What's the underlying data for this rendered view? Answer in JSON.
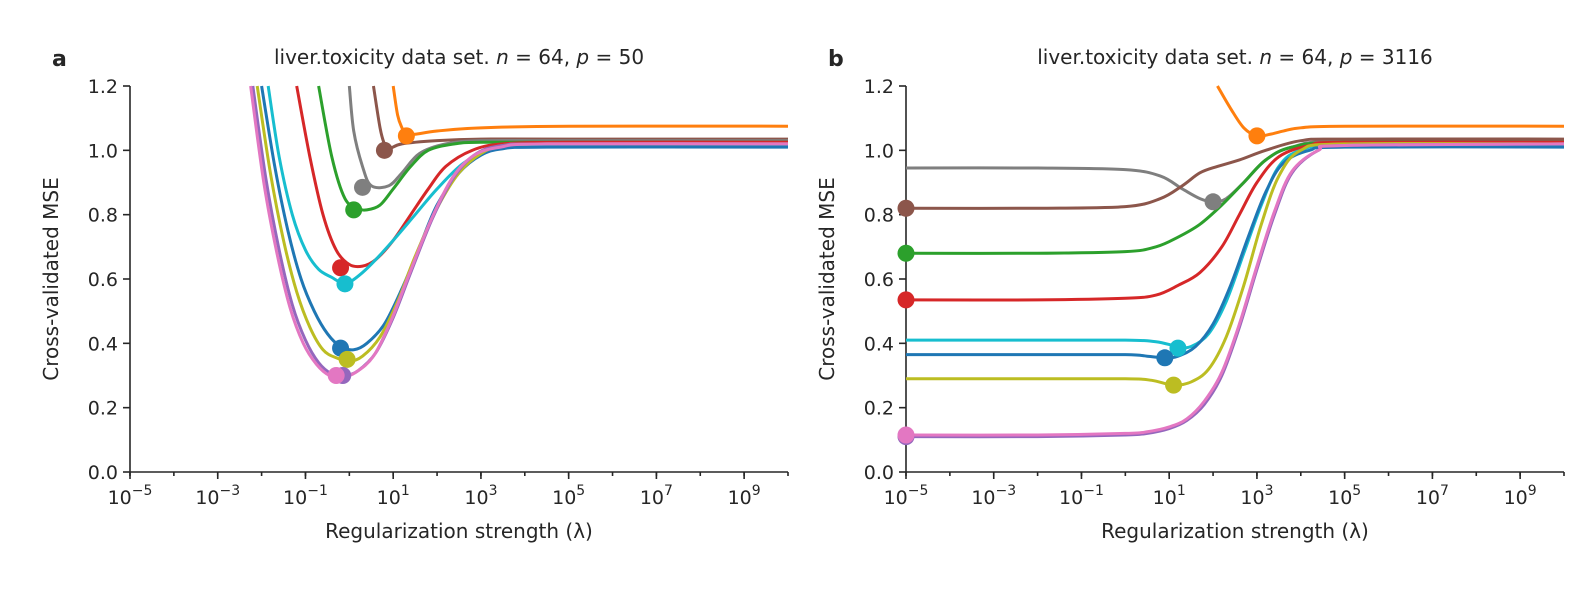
{
  "chart_data": [
    {
      "type": "line",
      "panel": "a",
      "title_parts": [
        "liver.toxicity data set. ",
        "n",
        " = 64, ",
        "p",
        " = 50"
      ],
      "xlabel": "Regularization strength (λ)",
      "ylabel": "Cross-validated MSE",
      "xscale": "log",
      "xlim": [
        -5,
        10
      ],
      "ylim": [
        0,
        1.2
      ],
      "yticks": [
        "0.0",
        "0.2",
        "0.4",
        "0.6",
        "0.8",
        "1.0",
        "1.2"
      ],
      "xticks_exp": [
        "−5",
        "−3",
        "−1",
        "1",
        "3",
        "5",
        "7",
        "9"
      ],
      "grid": false,
      "series": [
        {
          "color": "#ff7f0e",
          "x": [
            1.0,
            1.1,
            1.2,
            1.3,
            1.5,
            2,
            3,
            5,
            10
          ],
          "y": [
            1.2,
            1.11,
            1.07,
            1.05,
            1.05,
            1.06,
            1.07,
            1.075,
            1.075
          ],
          "min": [
            1.3,
            1.045
          ]
        },
        {
          "color": "#8c564b",
          "x": [
            0.55,
            0.7,
            0.8,
            0.9,
            1.2,
            2,
            3,
            5,
            10
          ],
          "y": [
            1.2,
            1.07,
            1.02,
            1.005,
            1.02,
            1.03,
            1.035,
            1.035,
            1.035
          ],
          "min": [
            0.8,
            1.0
          ]
        },
        {
          "color": "#7f7f7f",
          "x": [
            0,
            0.1,
            0.3,
            0.5,
            0.9,
            1.2,
            1.6,
            2.2,
            3,
            5,
            10
          ],
          "y": [
            1.2,
            1.06,
            0.95,
            0.89,
            0.89,
            0.93,
            0.99,
            1.02,
            1.03,
            1.03,
            1.03
          ],
          "min": [
            0.3,
            0.885
          ]
        },
        {
          "color": "#2ca02c",
          "x": [
            -0.7,
            -0.4,
            -0.1,
            0.2,
            0.4,
            0.7,
            1.0,
            1.4,
            1.8,
            2.4,
            3,
            5,
            10
          ],
          "y": [
            1.2,
            0.98,
            0.85,
            0.82,
            0.815,
            0.83,
            0.88,
            0.95,
            1.0,
            1.02,
            1.025,
            1.025,
            1.025
          ],
          "min": [
            0.1,
            0.815
          ]
        },
        {
          "color": "#d62728",
          "x": [
            -1.2,
            -0.9,
            -0.6,
            -0.3,
            0,
            0.3,
            0.6,
            1.0,
            1.4,
            1.8,
            2.2,
            2.8,
            3.5,
            5,
            10
          ],
          "y": [
            1.2,
            0.98,
            0.8,
            0.69,
            0.645,
            0.64,
            0.66,
            0.72,
            0.8,
            0.88,
            0.95,
            1.0,
            1.02,
            1.025,
            1.025
          ],
          "min": [
            -0.2,
            0.635
          ]
        },
        {
          "color": "#17becf",
          "x": [
            -1.85,
            -1.6,
            -1.3,
            -1.0,
            -0.7,
            -0.4,
            -0.2,
            0,
            0.3,
            0.6,
            1.0,
            1.5,
            2.0,
            2.6,
            3.2,
            4,
            5,
            10
          ],
          "y": [
            1.2,
            0.98,
            0.8,
            0.69,
            0.63,
            0.605,
            0.59,
            0.59,
            0.62,
            0.66,
            0.72,
            0.8,
            0.88,
            0.96,
            1.0,
            1.015,
            1.015,
            1.015
          ],
          "min": [
            -0.1,
            0.585
          ]
        },
        {
          "color": "#1f77b4",
          "x": [
            -2.0,
            -1.7,
            -1.4,
            -1.1,
            -0.8,
            -0.5,
            -0.2,
            0.1,
            0.4,
            0.8,
            1.2,
            1.6,
            2.0,
            2.5,
            3.0,
            3.5,
            4.5,
            10
          ],
          "y": [
            1.2,
            0.95,
            0.75,
            0.6,
            0.5,
            0.43,
            0.39,
            0.38,
            0.4,
            0.46,
            0.57,
            0.7,
            0.83,
            0.93,
            0.985,
            1.005,
            1.01,
            1.01
          ],
          "min": [
            -0.2,
            0.385
          ]
        },
        {
          "color": "#bcbd22",
          "x": [
            -2.1,
            -1.8,
            -1.5,
            -1.2,
            -0.9,
            -0.6,
            -0.3,
            0,
            0.3,
            0.7,
            1.1,
            1.5,
            2.0,
            2.5,
            3.0,
            3.5,
            4.5,
            10
          ],
          "y": [
            1.2,
            0.93,
            0.72,
            0.56,
            0.45,
            0.38,
            0.355,
            0.345,
            0.36,
            0.42,
            0.53,
            0.67,
            0.82,
            0.93,
            0.99,
            1.015,
            1.02,
            1.02
          ],
          "min": [
            -0.05,
            0.35
          ]
        },
        {
          "color": "#9467bd",
          "x": [
            -2.2,
            -1.9,
            -1.6,
            -1.3,
            -1.0,
            -0.7,
            -0.4,
            -0.1,
            0.2,
            0.6,
            1.0,
            1.4,
            1.9,
            2.4,
            2.9,
            3.5,
            4.5,
            10
          ],
          "y": [
            1.2,
            0.91,
            0.69,
            0.52,
            0.41,
            0.34,
            0.305,
            0.3,
            0.315,
            0.37,
            0.48,
            0.62,
            0.79,
            0.92,
            0.99,
            1.015,
            1.02,
            1.02
          ],
          "min": [
            -0.15,
            0.3
          ]
        },
        {
          "color": "#e377c2",
          "x": [
            -2.25,
            -1.95,
            -1.65,
            -1.35,
            -1.05,
            -0.75,
            -0.45,
            -0.15,
            0.15,
            0.55,
            0.95,
            1.35,
            1.85,
            2.35,
            2.85,
            3.45,
            4.5,
            10
          ],
          "y": [
            1.2,
            0.9,
            0.68,
            0.51,
            0.4,
            0.335,
            0.3,
            0.295,
            0.31,
            0.36,
            0.47,
            0.61,
            0.78,
            0.915,
            0.985,
            1.01,
            1.02,
            1.02
          ],
          "min": [
            -0.3,
            0.3
          ]
        }
      ]
    },
    {
      "type": "line",
      "panel": "b",
      "title_parts": [
        "liver.toxicity data set. ",
        "n",
        " = 64, ",
        "p",
        " = 3116"
      ],
      "xlabel": "Regularization strength (λ)",
      "ylabel": "Cross-validated MSE",
      "xscale": "log",
      "xlim": [
        -5,
        10
      ],
      "ylim": [
        0,
        1.2
      ],
      "yticks": [
        "0.0",
        "0.2",
        "0.4",
        "0.6",
        "0.8",
        "1.0",
        "1.2"
      ],
      "xticks_exp": [
        "−5",
        "−3",
        "−1",
        "1",
        "3",
        "5",
        "7",
        "9"
      ],
      "grid": false,
      "series": [
        {
          "color": "#ff7f0e",
          "x": [
            2.1,
            2.4,
            2.7,
            3.0,
            3.3,
            3.6,
            4.0,
            5,
            10
          ],
          "y": [
            1.2,
            1.13,
            1.07,
            1.045,
            1.05,
            1.06,
            1.07,
            1.075,
            1.075
          ],
          "min": [
            3.0,
            1.045
          ]
        },
        {
          "color": "#7f7f7f",
          "x": [
            -5,
            -2,
            0,
            0.8,
            1.3,
            1.7,
            2.0,
            2.3,
            2.7,
            3.2,
            3.8,
            5,
            10
          ],
          "y": [
            0.945,
            0.945,
            0.94,
            0.92,
            0.88,
            0.85,
            0.84,
            0.85,
            0.9,
            0.97,
            1.01,
            1.03,
            1.03
          ],
          "min": [
            2.0,
            0.84
          ]
        },
        {
          "color": "#8c564b",
          "x": [
            -5,
            -2,
            0,
            0.8,
            1.3,
            1.7,
            2.1,
            2.6,
            3.2,
            4,
            5,
            10
          ],
          "y": [
            0.82,
            0.82,
            0.825,
            0.85,
            0.89,
            0.93,
            0.95,
            0.97,
            1.0,
            1.03,
            1.035,
            1.035
          ],
          "min": [
            -5,
            0.82
          ]
        },
        {
          "color": "#2ca02c",
          "x": [
            -5,
            -2,
            0,
            0.7,
            1.2,
            1.7,
            2.2,
            2.7,
            3.2,
            3.8,
            5,
            10
          ],
          "y": [
            0.68,
            0.68,
            0.685,
            0.7,
            0.73,
            0.77,
            0.83,
            0.9,
            0.97,
            1.01,
            1.025,
            1.025
          ],
          "min": [
            -5,
            0.68
          ]
        },
        {
          "color": "#d62728",
          "x": [
            -5,
            -2,
            0,
            0.7,
            1.2,
            1.7,
            2.2,
            2.6,
            3.0,
            3.5,
            4.2,
            5,
            10
          ],
          "y": [
            0.535,
            0.535,
            0.54,
            0.55,
            0.58,
            0.62,
            0.7,
            0.8,
            0.9,
            0.98,
            1.015,
            1.025,
            1.025
          ],
          "min": [
            -5,
            0.535
          ]
        },
        {
          "color": "#17becf",
          "x": [
            -5,
            -2,
            0,
            0.7,
            1.2,
            1.5,
            1.9,
            2.3,
            2.7,
            3.1,
            3.5,
            4.0,
            5,
            10
          ],
          "y": [
            0.41,
            0.41,
            0.41,
            0.405,
            0.39,
            0.39,
            0.43,
            0.53,
            0.68,
            0.83,
            0.95,
            1.0,
            1.015,
            1.015
          ],
          "min": [
            1.2,
            0.385
          ]
        },
        {
          "color": "#1f77b4",
          "x": [
            -5,
            -2,
            0,
            0.5,
            0.9,
            1.2,
            1.6,
            2.0,
            2.4,
            2.8,
            3.2,
            3.6,
            4.2,
            5,
            10
          ],
          "y": [
            0.365,
            0.365,
            0.365,
            0.36,
            0.355,
            0.36,
            0.39,
            0.46,
            0.58,
            0.73,
            0.87,
            0.96,
            1.0,
            1.01,
            1.01
          ],
          "min": [
            0.9,
            0.355
          ]
        },
        {
          "color": "#bcbd22",
          "x": [
            -5,
            -2,
            0,
            0.6,
            1.1,
            1.5,
            1.9,
            2.3,
            2.7,
            3.1,
            3.5,
            4.0,
            5,
            10
          ],
          "y": [
            0.29,
            0.29,
            0.29,
            0.285,
            0.27,
            0.28,
            0.32,
            0.42,
            0.58,
            0.77,
            0.92,
            1.0,
            1.02,
            1.02
          ],
          "min": [
            1.1,
            0.27
          ]
        },
        {
          "color": "#9467bd",
          "x": [
            -5,
            -2,
            0,
            0.5,
            1.0,
            1.4,
            1.8,
            2.2,
            2.6,
            3.0,
            3.4,
            3.8,
            4.4,
            5,
            10
          ],
          "y": [
            0.11,
            0.11,
            0.115,
            0.12,
            0.135,
            0.16,
            0.21,
            0.3,
            0.45,
            0.63,
            0.8,
            0.93,
            1.0,
            1.015,
            1.02
          ],
          "min": [
            -5,
            0.11
          ]
        },
        {
          "color": "#e377c2",
          "x": [
            -5,
            -2,
            0,
            0.5,
            1.0,
            1.4,
            1.8,
            2.2,
            2.6,
            3.0,
            3.4,
            3.8,
            4.4,
            5,
            10
          ],
          "y": [
            0.115,
            0.115,
            0.12,
            0.125,
            0.14,
            0.165,
            0.22,
            0.31,
            0.46,
            0.64,
            0.81,
            0.935,
            1.0,
            1.015,
            1.02
          ],
          "min": [
            -5,
            0.115
          ]
        }
      ]
    }
  ]
}
